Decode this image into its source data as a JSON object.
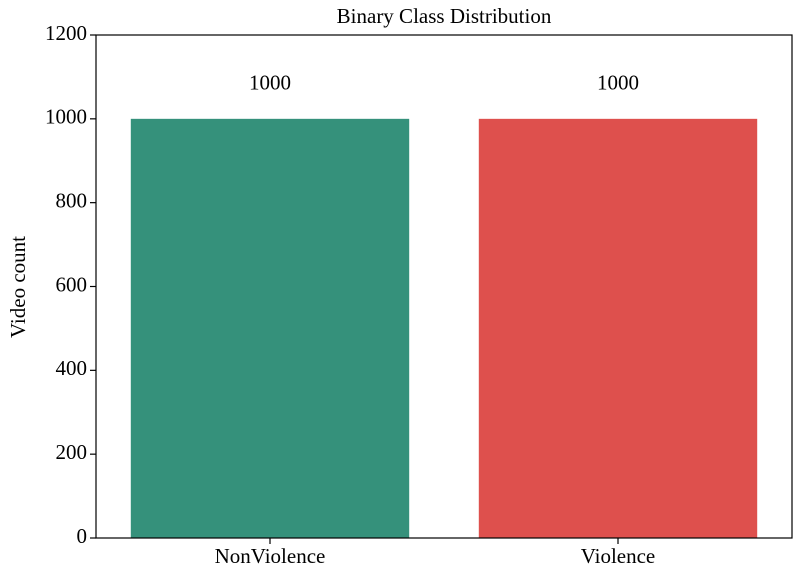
{
  "chart_data": {
    "type": "bar",
    "title": "Binary Class Distribution",
    "y_label": "Video count",
    "categories": [
      "NonViolence",
      "Violence"
    ],
    "values": [
      1000,
      1000
    ],
    "colors": [
      "#35917b",
      "#de504d"
    ],
    "ylim": [
      0,
      1200
    ],
    "yticks": [
      0,
      200,
      400,
      600,
      800,
      1000,
      1200
    ],
    "grid": false
  }
}
